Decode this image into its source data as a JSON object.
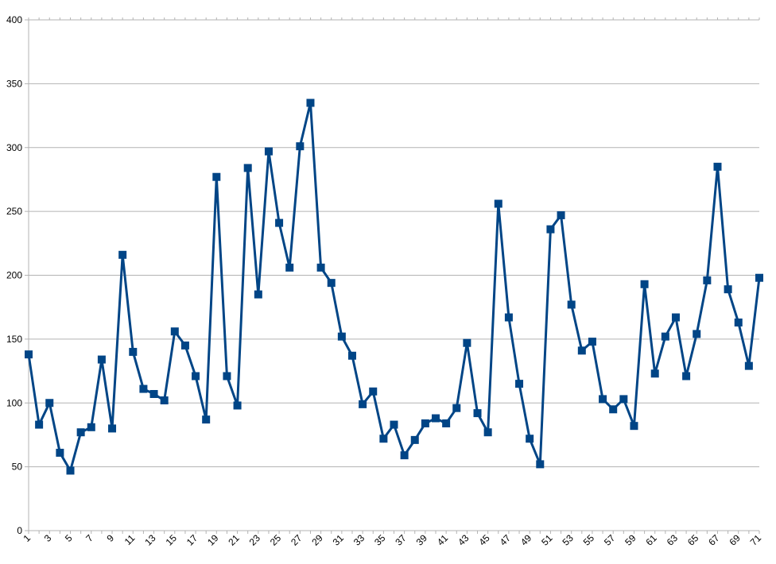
{
  "chart_data": {
    "type": "line",
    "title": "",
    "xlabel": "",
    "ylabel": "",
    "ylim": [
      0,
      400
    ],
    "yticks": [
      0,
      50,
      100,
      150,
      200,
      250,
      300,
      350,
      400
    ],
    "grid": true,
    "legend": "none",
    "x_tick_labels": [
      "1",
      "3",
      "5",
      "7",
      "9",
      "11",
      "13",
      "15",
      "17",
      "19",
      "21",
      "23",
      "25",
      "27",
      "29",
      "31",
      "33",
      "35",
      "37",
      "39",
      "41",
      "43",
      "45",
      "47",
      "49",
      "51",
      "53",
      "55",
      "57",
      "59",
      "61",
      "63",
      "65",
      "67",
      "69",
      "71"
    ],
    "x": [
      1,
      2,
      3,
      4,
      5,
      6,
      7,
      8,
      9,
      10,
      11,
      12,
      13,
      14,
      15,
      16,
      17,
      18,
      19,
      20,
      21,
      22,
      23,
      24,
      25,
      26,
      27,
      28,
      29,
      30,
      31,
      32,
      33,
      34,
      35,
      36,
      37,
      38,
      39,
      40,
      41,
      42,
      43,
      44,
      45,
      46,
      47,
      48,
      49,
      50,
      51,
      52,
      53,
      54,
      55,
      56,
      57,
      58,
      59,
      60,
      61,
      62,
      63,
      64,
      65,
      66,
      67,
      68,
      69,
      70,
      71
    ],
    "series": [
      {
        "color": "#004586",
        "values": [
          138,
          83,
          100,
          61,
          47,
          77,
          81,
          134,
          80,
          216,
          140,
          111,
          107,
          102,
          156,
          145,
          121,
          87,
          277,
          121,
          98,
          284,
          185,
          297,
          241,
          206,
          301,
          335,
          206,
          194,
          152,
          137,
          99,
          109,
          72,
          83,
          59,
          71,
          84,
          88,
          84,
          96,
          147,
          92,
          77,
          256,
          167,
          115,
          72,
          52,
          236,
          247,
          177,
          141,
          148,
          103,
          95,
          103,
          82,
          193,
          123,
          152,
          167,
          121,
          154,
          196,
          285,
          189,
          163,
          129,
          198
        ]
      }
    ]
  }
}
